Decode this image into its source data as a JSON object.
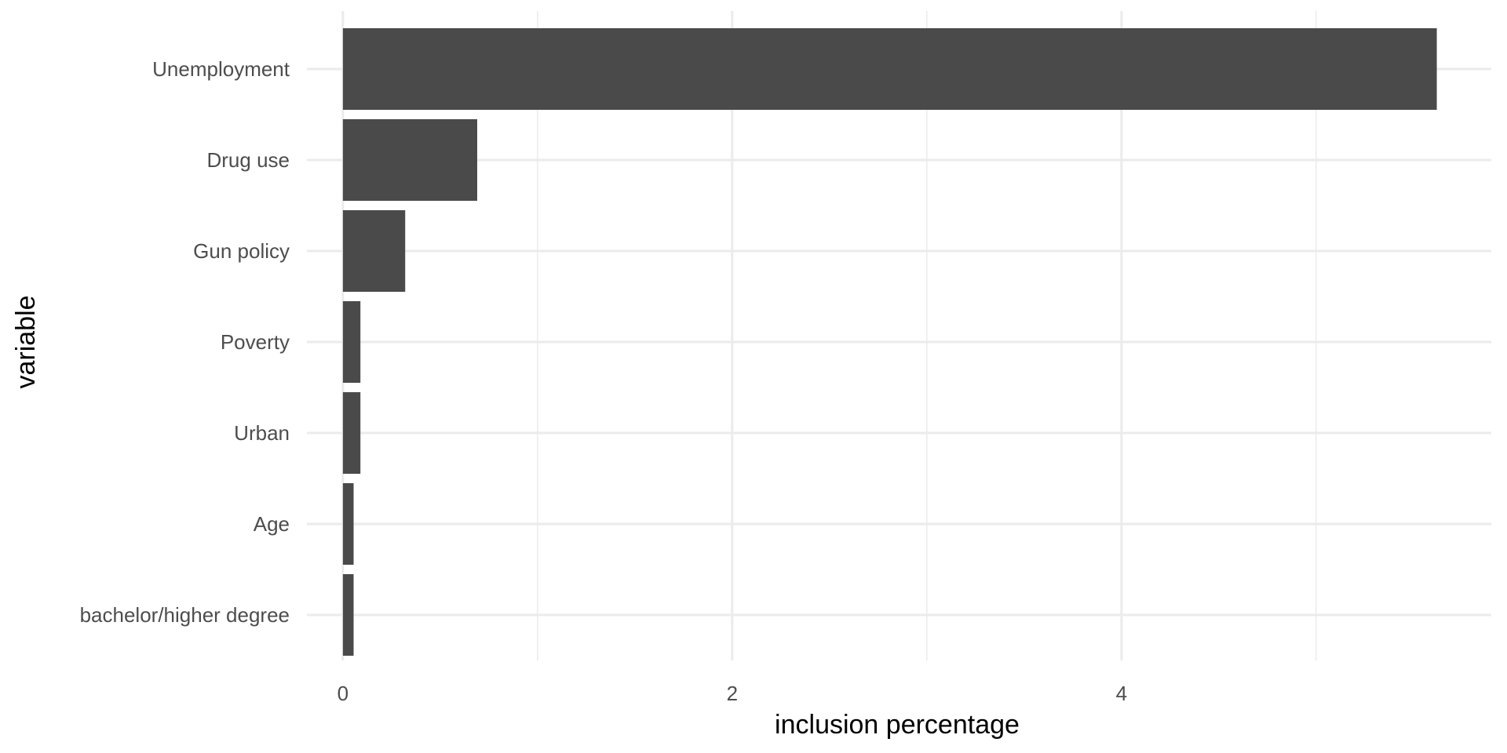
{
  "chart_data": {
    "type": "bar",
    "orientation": "horizontal",
    "categories": [
      "Unemployment",
      "Drug use",
      "Gun policy",
      "Poverty",
      "Urban",
      "Age",
      "bachelor/higher degree"
    ],
    "values": [
      5.62,
      0.69,
      0.32,
      0.09,
      0.09,
      0.055,
      0.055
    ],
    "xlabel": "inclusion percentage",
    "ylabel": "variable",
    "xlim": [
      -0.185,
      5.9
    ],
    "x_ticks": [
      0,
      2,
      4
    ],
    "x_tick_labels": [
      "0",
      "2",
      "4"
    ],
    "x_minor_ticks": [
      1,
      3,
      5
    ],
    "grid": true,
    "colors": {
      "bar": "#4a4a4a",
      "grid": "#ebebeb",
      "tick_text": "#4d4d4d",
      "title_text": "#000000"
    }
  }
}
